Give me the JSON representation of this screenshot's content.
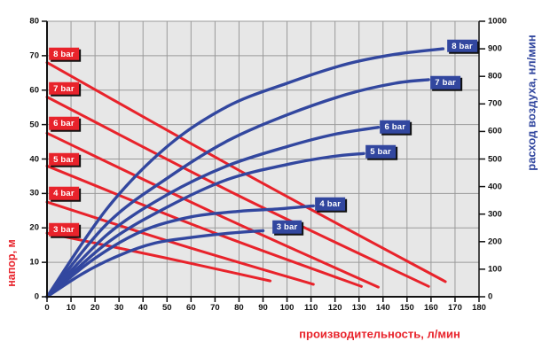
{
  "colors": {
    "red": "#e8232b",
    "blue": "#32479f",
    "plot_bg": "#e7e7e7",
    "grid": "#9a9a9a",
    "axis": "#111111",
    "label_text": "#ffffff",
    "shadow": "#101010"
  },
  "chart_data": {
    "type": "line",
    "x_axis": {
      "label": "производительность, л/мин",
      "min": 0,
      "max": 180,
      "ticks": [
        0,
        10,
        20,
        30,
        40,
        50,
        60,
        70,
        80,
        90,
        100,
        110,
        120,
        130,
        140,
        150,
        160,
        170,
        180
      ]
    },
    "y_left_axis": {
      "label": "напор, м",
      "min": 0,
      "max": 80,
      "ticks": [
        0,
        10,
        20,
        30,
        40,
        50,
        60,
        70,
        80
      ]
    },
    "y_right_axis": {
      "label": "расход воздуха, нл/мин",
      "min": 0,
      "max": 1000,
      "ticks": [
        0,
        100,
        200,
        300,
        400,
        500,
        600,
        700,
        800,
        900,
        1000
      ]
    },
    "head_series": [
      {
        "label": "3 bar",
        "points": [
          [
            0,
            18.5
          ],
          [
            50,
            11.2
          ],
          [
            93,
            4.6
          ]
        ],
        "label_pos": [
          7,
          19.5
        ]
      },
      {
        "label": "4 bar",
        "points": [
          [
            0,
            27.5
          ],
          [
            55,
            15.2
          ],
          [
            111,
            3.6
          ]
        ],
        "label_pos": [
          7,
          30
        ]
      },
      {
        "label": "5 bar",
        "points": [
          [
            0,
            38
          ],
          [
            65,
            19.8
          ],
          [
            131,
            3
          ]
        ],
        "label_pos": [
          7,
          40
        ]
      },
      {
        "label": "6 bar",
        "points": [
          [
            0,
            47.5
          ],
          [
            70,
            24.2
          ],
          [
            138,
            2.8
          ]
        ],
        "label_pos": [
          7,
          50.3
        ]
      },
      {
        "label": "7 bar",
        "points": [
          [
            0,
            58
          ],
          [
            80,
            29.3
          ],
          [
            159,
            3
          ]
        ],
        "label_pos": [
          7,
          60.5
        ]
      },
      {
        "label": "8 bar",
        "points": [
          [
            0,
            68
          ],
          [
            85,
            34.8
          ],
          [
            166,
            4.4
          ]
        ],
        "label_pos": [
          7,
          70.5
        ]
      }
    ],
    "flow_series": [
      {
        "label": "3 bar",
        "points": [
          [
            0,
            0
          ],
          [
            15,
            85
          ],
          [
            30,
            150
          ],
          [
            45,
            195
          ],
          [
            60,
            215
          ],
          [
            75,
            230
          ],
          [
            90,
            240
          ]
        ],
        "label_pos": [
          100,
          254
        ]
      },
      {
        "label": "4 bar",
        "points": [
          [
            0,
            0
          ],
          [
            20,
            140
          ],
          [
            40,
            240
          ],
          [
            60,
            290
          ],
          [
            80,
            310
          ],
          [
            95,
            318
          ],
          [
            111,
            330
          ]
        ],
        "label_pos": [
          118,
          337
        ]
      },
      {
        "label": "5 bar",
        "points": [
          [
            0,
            0
          ],
          [
            25,
            195
          ],
          [
            50,
            325
          ],
          [
            75,
            425
          ],
          [
            100,
            480
          ],
          [
            118,
            508
          ],
          [
            132,
            520
          ]
        ],
        "label_pos": [
          139,
          527
        ]
      },
      {
        "label": "6 bar",
        "points": [
          [
            0,
            0
          ],
          [
            25,
            225
          ],
          [
            50,
            370
          ],
          [
            75,
            475
          ],
          [
            100,
            545
          ],
          [
            120,
            590
          ],
          [
            138,
            615
          ]
        ],
        "label_pos": [
          145,
          617
        ]
      },
      {
        "label": "7 bar",
        "points": [
          [
            0,
            0
          ],
          [
            25,
            265
          ],
          [
            50,
            430
          ],
          [
            75,
            565
          ],
          [
            100,
            660
          ],
          [
            125,
            735
          ],
          [
            145,
            775
          ],
          [
            159,
            788
          ]
        ],
        "label_pos": [
          166,
          778
        ]
      },
      {
        "label": "8 bar",
        "points": [
          [
            0,
            0
          ],
          [
            25,
            320
          ],
          [
            50,
            545
          ],
          [
            75,
            690
          ],
          [
            100,
            775
          ],
          [
            125,
            845
          ],
          [
            145,
            880
          ],
          [
            165,
            900
          ]
        ],
        "label_pos": [
          173,
          910
        ]
      }
    ]
  }
}
